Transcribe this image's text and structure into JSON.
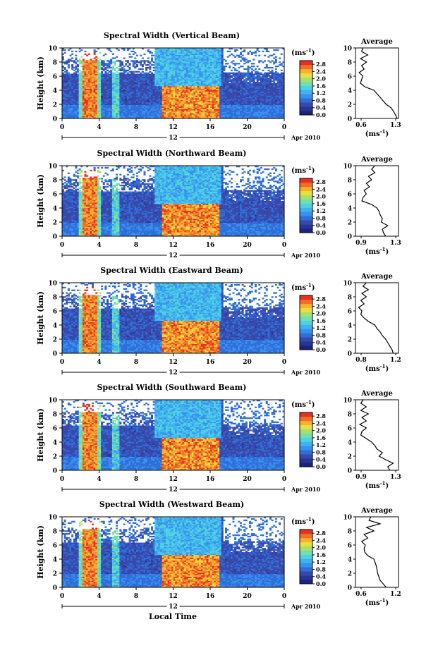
{
  "figure": {
    "x_axis_title": "Local Time",
    "date_label": "Apr 2010",
    "day_label": "12",
    "colorbar_unit": "(ms",
    "colorbar_unit_exp": "-1",
    "colorbar_unit_close": ")",
    "colorbar_ticks": [
      "0.0",
      "0.4",
      "0.8",
      "1.2",
      "1.6",
      "2.0",
      "2.4",
      "2.8"
    ],
    "colorbar_range": [
      0,
      3.0
    ],
    "colormap": [
      "#1a237e",
      "#283593",
      "#3949ab",
      "#2f6fd8",
      "#3a8ff0",
      "#41b2f0",
      "#4fd2e0",
      "#6fe0b0",
      "#a8e070",
      "#e8e040",
      "#f8b030",
      "#f07028",
      "#e83020"
    ],
    "heights_km": [
      0,
      2,
      4,
      6,
      8,
      10
    ],
    "time_ticks_hours": [
      0,
      4,
      8,
      12,
      16,
      20,
      0
    ]
  },
  "chart_data": [
    {
      "type": "heatmap",
      "title": "Spectral Width (Vertical Beam)",
      "xlabel": "Local Time",
      "ylabel": "Height (km)",
      "xlim": [
        0,
        24
      ],
      "ylim": [
        0,
        10
      ],
      "zlim": [
        0,
        3.0
      ],
      "z_unit": "ms-1",
      "profile": {
        "title": "Average",
        "xlabel_unit": "(ms",
        "xticks": [
          "0.6",
          "1.3"
        ],
        "xlim": [
          0.6,
          1.3
        ],
        "height": [
          0.0,
          0.5,
          1.0,
          1.5,
          2.0,
          2.5,
          3.0,
          3.5,
          4.0,
          4.5,
          5.0,
          5.5,
          6.0,
          6.5,
          7.0,
          7.5,
          8.0,
          8.5,
          9.0,
          9.5,
          10.0
        ],
        "values": [
          1.28,
          1.25,
          1.22,
          1.18,
          1.1,
          1.05,
          1.0,
          0.95,
          0.9,
          0.75,
          0.68,
          0.7,
          0.72,
          0.66,
          0.74,
          0.7,
          0.78,
          0.68,
          0.8,
          0.7,
          0.72
        ]
      }
    },
    {
      "type": "heatmap",
      "title": "Spectral Width (Northward Beam)",
      "xlabel": "Local Time",
      "ylabel": "Height (km)",
      "xlim": [
        0,
        24
      ],
      "ylim": [
        0,
        10
      ],
      "zlim": [
        0,
        3.0
      ],
      "z_unit": "ms-1",
      "profile": {
        "title": "Average",
        "xlabel_unit": "(ms",
        "xticks": [
          "0.9",
          "1.3"
        ],
        "xlim": [
          0.9,
          1.3
        ],
        "height": [
          0.0,
          0.5,
          1.0,
          1.5,
          2.0,
          2.5,
          3.0,
          3.5,
          4.0,
          4.5,
          5.0,
          5.5,
          6.0,
          6.5,
          7.0,
          7.5,
          8.0,
          8.5,
          9.0,
          9.5,
          10.0
        ],
        "values": [
          1.18,
          1.16,
          1.15,
          1.2,
          1.14,
          1.15,
          1.13,
          1.12,
          1.1,
          1.05,
          0.96,
          0.97,
          1.0,
          0.98,
          1.03,
          1.0,
          1.05,
          1.02,
          1.08,
          1.05,
          1.08
        ]
      }
    },
    {
      "type": "heatmap",
      "title": "Spectral Width (Eastward Beam)",
      "xlabel": "Local Time",
      "ylabel": "Height (km)",
      "xlim": [
        0,
        24
      ],
      "ylim": [
        0,
        10
      ],
      "zlim": [
        0,
        3.0
      ],
      "z_unit": "ms-1",
      "profile": {
        "title": "Average",
        "xlabel_unit": "(ms",
        "xticks": [
          "0.8",
          "1.2"
        ],
        "xlim": [
          0.8,
          1.2
        ],
        "height": [
          0.0,
          0.5,
          1.0,
          1.5,
          2.0,
          2.5,
          3.0,
          3.5,
          4.0,
          4.5,
          5.0,
          5.5,
          6.0,
          6.5,
          7.0,
          7.5,
          8.0,
          8.5,
          9.0,
          9.5,
          10.0
        ],
        "values": [
          1.15,
          1.14,
          1.12,
          1.1,
          1.08,
          1.05,
          1.03,
          1.0,
          0.98,
          0.92,
          0.88,
          0.85,
          0.86,
          0.83,
          0.88,
          0.85,
          0.9,
          0.86,
          0.92,
          0.87,
          0.9
        ]
      }
    },
    {
      "type": "heatmap",
      "title": "Spectral Width (Southward Beam)",
      "xlabel": "Local Time",
      "ylabel": "Height (km)",
      "xlim": [
        0,
        24
      ],
      "ylim": [
        0,
        10
      ],
      "zlim": [
        0,
        3.0
      ],
      "z_unit": "ms-1",
      "profile": {
        "title": "Average",
        "xlabel_unit": "(ms",
        "xticks": [
          "0.9",
          "1.3"
        ],
        "xlim": [
          0.9,
          1.3
        ],
        "height": [
          0.0,
          0.5,
          1.0,
          1.5,
          2.0,
          2.5,
          3.0,
          3.5,
          4.0,
          4.5,
          5.0,
          5.5,
          6.0,
          6.5,
          7.0,
          7.5,
          8.0,
          8.5,
          9.0,
          9.5,
          10.0
        ],
        "values": [
          1.22,
          1.2,
          1.25,
          1.18,
          1.12,
          1.15,
          1.1,
          1.08,
          1.05,
          1.0,
          0.95,
          0.96,
          1.0,
          0.94,
          1.0,
          0.96,
          1.02,
          0.95,
          1.0,
          0.95,
          0.97
        ]
      }
    },
    {
      "type": "heatmap",
      "title": "Spectral Width (Westward Beam)",
      "xlabel": "Local Time",
      "ylabel": "Height (km)",
      "xlim": [
        0,
        24
      ],
      "ylim": [
        0,
        10
      ],
      "zlim": [
        0,
        3.0
      ],
      "z_unit": "ms-1",
      "profile": {
        "title": "Average",
        "xlabel_unit": "(ms",
        "xticks": [
          "0.6",
          "1.2"
        ],
        "xlim": [
          0.6,
          1.3
        ],
        "height": [
          0.0,
          0.5,
          1.0,
          1.5,
          2.0,
          2.5,
          3.0,
          3.5,
          4.0,
          4.5,
          5.0,
          5.5,
          6.0,
          6.5,
          7.0,
          7.5,
          8.0,
          8.5,
          9.0,
          9.5,
          10.0
        ],
        "values": [
          1.1,
          1.05,
          1.0,
          0.98,
          0.96,
          0.95,
          0.94,
          0.92,
          0.9,
          0.8,
          0.75,
          0.74,
          0.76,
          0.7,
          0.8,
          0.74,
          0.9,
          0.78,
          1.0,
          0.82,
          0.85
        ]
      }
    }
  ]
}
